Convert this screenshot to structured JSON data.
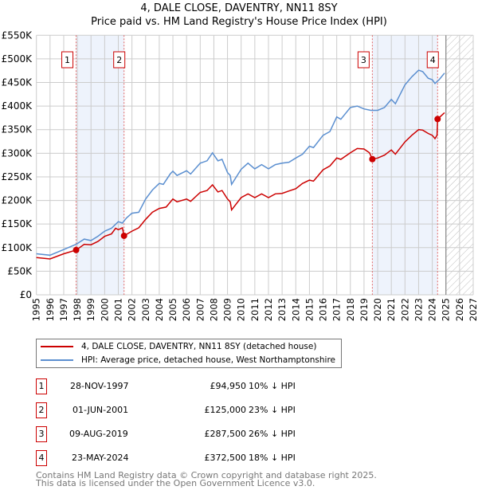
{
  "title": {
    "line1": "4, DALE CLOSE, DAVENTRY, NN11 8SY",
    "line2": "Price paid vs. HM Land Registry's House Price Index (HPI)"
  },
  "chart_data": {
    "type": "line",
    "title": "4, DALE CLOSE, DAVENTRY, NN11 8SY — Price paid vs. HM Land Registry's House Price Index (HPI)",
    "xlim": [
      1995,
      2027
    ],
    "ylim": [
      0,
      550000
    ],
    "x_ticks": [
      "1995",
      "1996",
      "1997",
      "1998",
      "1999",
      "2000",
      "2001",
      "2002",
      "2003",
      "2004",
      "2005",
      "2006",
      "2007",
      "2008",
      "2009",
      "2010",
      "2011",
      "2012",
      "2013",
      "2014",
      "2015",
      "2016",
      "2017",
      "2018",
      "2019",
      "2020",
      "2021",
      "2022",
      "2023",
      "2024",
      "2025",
      "2026",
      "2027"
    ],
    "y_ticks": [
      {
        "v": 0,
        "label": "£0"
      },
      {
        "v": 50000,
        "label": "£50K"
      },
      {
        "v": 100000,
        "label": "£100K"
      },
      {
        "v": 150000,
        "label": "£150K"
      },
      {
        "v": 200000,
        "label": "£200K"
      },
      {
        "v": 250000,
        "label": "£250K"
      },
      {
        "v": 300000,
        "label": "£300K"
      },
      {
        "v": 350000,
        "label": "£350K"
      },
      {
        "v": 400000,
        "label": "£400K"
      },
      {
        "v": 450000,
        "label": "£450K"
      },
      {
        "v": 500000,
        "label": "£500K"
      },
      {
        "v": 550000,
        "label": "£550K"
      }
    ],
    "grid": true,
    "forecast_hatch_from": 2025.0,
    "shaded_ranges": [
      [
        1997.91,
        2001.42
      ],
      [
        2019.61,
        2024.39
      ]
    ],
    "series": [
      {
        "name": "4, DALE CLOSE, DAVENTRY, NN11 8SY (detached house)",
        "color": "#cc0000",
        "x": [
          1995,
          1996,
          1997,
          1997.91,
          1998.5,
          1999,
          1999.5,
          2000,
          2000.5,
          2000.8,
          2001,
          2001.3,
          2001.42,
          2002,
          2002.5,
          2003,
          2003.5,
          2004,
          2004.5,
          2005,
          2005.3,
          2006,
          2006.3,
          2007,
          2007.5,
          2007.9,
          2008.3,
          2008.6,
          2009,
          2009.2,
          2009.3,
          2010,
          2010.5,
          2011,
          2011.5,
          2012,
          2012.5,
          2013,
          2013.5,
          2014,
          2014.5,
          2015,
          2015.3,
          2016,
          2016.5,
          2017,
          2017.3,
          2018,
          2018.5,
          2019,
          2019.4,
          2019.61,
          2020,
          2020.5,
          2021,
          2021.3,
          2022,
          2022.5,
          2023,
          2023.3,
          2023.7,
          2024,
          2024.2,
          2024.35,
          2024.39,
          2024.9
        ],
        "y": [
          79000,
          76000,
          87000,
          94950,
          107000,
          106000,
          113000,
          124000,
          129000,
          141000,
          138000,
          142000,
          125000,
          135000,
          142000,
          160000,
          175000,
          183000,
          186000,
          203000,
          197000,
          203000,
          198000,
          217000,
          221000,
          233000,
          218000,
          221000,
          203000,
          197000,
          180000,
          206000,
          214000,
          206000,
          214000,
          206000,
          214000,
          215000,
          220000,
          225000,
          236000,
          243000,
          241000,
          265000,
          273000,
          290000,
          287000,
          301000,
          310000,
          309000,
          301000,
          287500,
          290000,
          296000,
          307000,
          298000,
          324000,
          338000,
          350000,
          349000,
          342000,
          338000,
          331000,
          338000,
          372500,
          386000
        ]
      },
      {
        "name": "HPI: Average price, detached house, West Northamptonshire",
        "color": "#5b8fd0",
        "x": [
          1995,
          1996,
          1997,
          1997.91,
          1998.5,
          1999,
          1999.5,
          2000,
          2000.5,
          2001,
          2001.3,
          2001.6,
          2002,
          2002.5,
          2003,
          2003.5,
          2004,
          2004.3,
          2004.8,
          2005,
          2005.3,
          2006,
          2006.3,
          2007,
          2007.5,
          2007.9,
          2008.3,
          2008.6,
          2009,
          2009.2,
          2009.3,
          2010,
          2010.5,
          2011,
          2011.5,
          2012,
          2012.5,
          2013,
          2013.5,
          2014,
          2014.5,
          2015,
          2015.3,
          2016,
          2016.5,
          2017,
          2017.3,
          2018,
          2018.5,
          2019,
          2019.5,
          2020,
          2020.5,
          2021,
          2021.3,
          2022,
          2022.5,
          2023,
          2023.3,
          2023.7,
          2024,
          2024.2,
          2024.5,
          2024.9
        ],
        "y": [
          87000,
          84000,
          96000,
          107000,
          118000,
          115000,
          124000,
          135000,
          141000,
          155000,
          152000,
          163000,
          173000,
          175000,
          203000,
          222000,
          236000,
          234000,
          256000,
          262000,
          253000,
          263000,
          256000,
          279000,
          284000,
          301000,
          284000,
          287000,
          259000,
          253000,
          234000,
          266000,
          279000,
          267000,
          276000,
          267000,
          276000,
          279000,
          281000,
          290000,
          298000,
          315000,
          312000,
          338000,
          346000,
          377000,
          372000,
          397000,
          400000,
          394000,
          391000,
          391000,
          397000,
          414000,
          405000,
          445000,
          462000,
          476000,
          473000,
          459000,
          456000,
          448000,
          456000,
          470000
        ]
      }
    ],
    "sales": [
      {
        "n": "1",
        "x": 1997.91,
        "y": 94950
      },
      {
        "n": "2",
        "x": 2001.42,
        "y": 125000
      },
      {
        "n": "3",
        "x": 2019.61,
        "y": 287500
      },
      {
        "n": "4",
        "x": 2024.39,
        "y": 372500
      }
    ]
  },
  "legend": [
    {
      "label": "4, DALE CLOSE, DAVENTRY, NN11 8SY (detached house)",
      "color": "#cc0000"
    },
    {
      "label": "HPI: Average price, detached house, West Northamptonshire",
      "color": "#5b8fd0"
    }
  ],
  "table": [
    {
      "n": "1",
      "date": "28-NOV-1997",
      "price": "£94,950",
      "hpi": "10% ↓ HPI"
    },
    {
      "n": "2",
      "date": "01-JUN-2001",
      "price": "£125,000",
      "hpi": "23% ↓ HPI"
    },
    {
      "n": "3",
      "date": "09-AUG-2019",
      "price": "£287,500",
      "hpi": "26% ↓ HPI"
    },
    {
      "n": "4",
      "date": "23-MAY-2024",
      "price": "£372,500",
      "hpi": "18% ↓ HPI"
    }
  ],
  "footer": {
    "line1": "Contains HM Land Registry data © Crown copyright and database right 2025.",
    "line2": "This data is licensed under the Open Government Licence v3.0."
  }
}
